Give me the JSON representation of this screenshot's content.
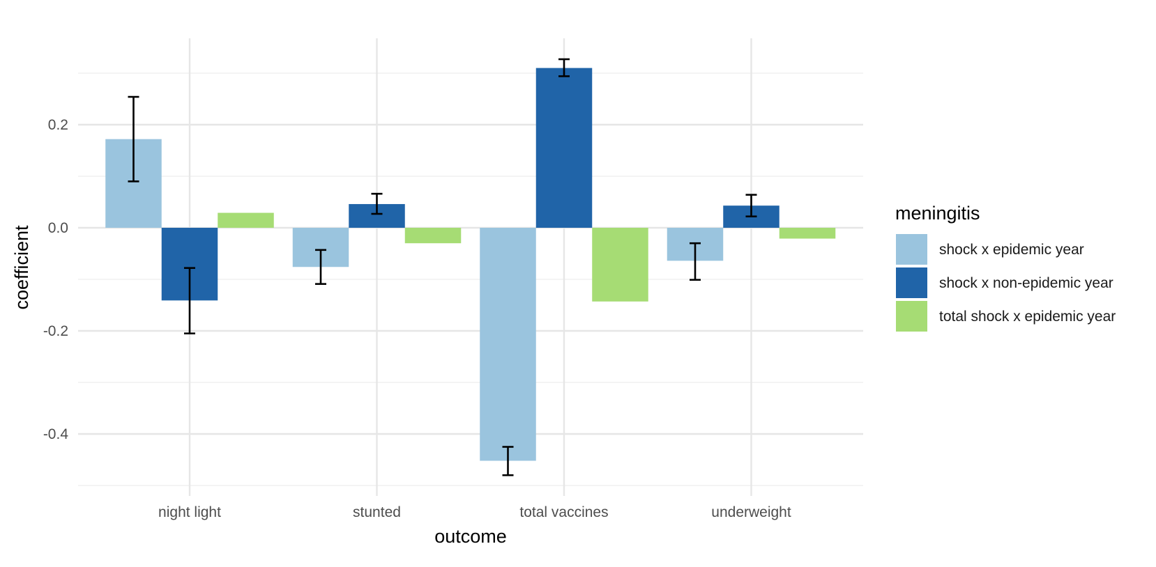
{
  "chart_data": {
    "type": "bar",
    "title": "",
    "xlabel": "outcome",
    "ylabel": "coefficient",
    "categories": [
      "night light",
      "stunted",
      "total vaccines",
      "underweight"
    ],
    "ylim": [
      -0.5,
      0.33
    ],
    "yticks": [
      0.2,
      0.0,
      -0.2,
      -0.4
    ],
    "ytick_labels": [
      "0.2",
      "0.0",
      "-0.2",
      "-0.4"
    ],
    "grid": true,
    "legend": {
      "title": "meningitis",
      "position": "right"
    },
    "series": [
      {
        "name": "shock x epidemic year",
        "color": "#9ac4de",
        "values": [
          0.172,
          -0.076,
          -0.452,
          -0.064
        ],
        "error_low": [
          0.09,
          -0.109,
          -0.48,
          -0.101
        ],
        "error_high": [
          0.254,
          -0.043,
          -0.425,
          -0.03
        ]
      },
      {
        "name": "shock x non-epidemic year",
        "color": "#2064a8",
        "values": [
          -0.141,
          0.046,
          0.31,
          0.043
        ],
        "error_low": [
          -0.205,
          0.027,
          0.294,
          0.022
        ],
        "error_high": [
          -0.078,
          0.066,
          0.327,
          0.064
        ]
      },
      {
        "name": "total shock x epidemic year",
        "color": "#a6dc74",
        "values": [
          0.029,
          -0.03,
          -0.143,
          -0.021
        ],
        "error_low": null,
        "error_high": null
      }
    ]
  }
}
